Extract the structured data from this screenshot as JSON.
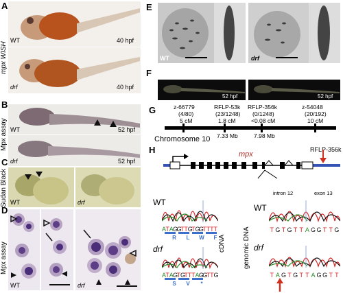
{
  "panels": {
    "A": {
      "letter": "A",
      "side": "mpx WISH",
      "wt": "WT",
      "drf": "drf",
      "stage1": "40 hpf",
      "stage2": "40 hpf"
    },
    "B": {
      "letter": "B",
      "side": "Mpx assay",
      "wt": "WT",
      "drf": "drf",
      "stage1": "52 hpf",
      "stage2": "52 hpf"
    },
    "C": {
      "letter": "C",
      "side": "Sudan Black",
      "wt": "WT",
      "drf": "drf"
    },
    "D": {
      "letter": "D",
      "side": "Mpx assay",
      "wt": "WT",
      "drf": "drf"
    },
    "E": {
      "letter": "E",
      "wt": "WT",
      "drf": "drf"
    },
    "F": {
      "letter": "F",
      "stage1": "52 hpf",
      "stage2": "52 hpf"
    },
    "G": {
      "letter": "G",
      "chromosome": "Chromosome 10",
      "markers": [
        {
          "name": "z-66779",
          "ratio": "(4/80)",
          "dist": "5 cM",
          "pos": ""
        },
        {
          "name": "RFLP-53k",
          "ratio": "(23/1248)",
          "dist": "1.8 cM",
          "pos": "7.33 Mb"
        },
        {
          "name": "RFLP-356k",
          "ratio": "(0/1248)",
          "dist": "<0.08 cM",
          "pos": "7.98 Mb"
        },
        {
          "name": "z-54048",
          "ratio": "(20/192)",
          "dist": "10 cM",
          "pos": ""
        }
      ]
    },
    "H": {
      "letter": "H",
      "gene": "mpx",
      "marker": "RFLP-356k",
      "cdna_label": "cDNA",
      "gdna_label": "genomic DNA",
      "wt": "WT",
      "drf": "drf",
      "intron": "intron 12",
      "exon": "exon 13",
      "wt_cdna_seq": [
        "A",
        "T",
        "A",
        "G",
        "G",
        "T",
        "T",
        "G",
        "T",
        "G",
        "G",
        "T",
        "T",
        "T",
        "T"
      ],
      "wt_cdna_aa": [
        "R",
        "L",
        "W",
        "F"
      ],
      "drf_cdna_seq": [
        "A",
        "T",
        "A",
        "G",
        "T",
        "G",
        "T",
        "T",
        "T",
        "A",
        "G",
        "G",
        "T",
        "T",
        "G"
      ],
      "drf_cdna_aa": [
        "S",
        "V",
        "*"
      ],
      "wt_gdna_seq": [
        "T",
        "G",
        "T",
        "G",
        "T",
        "T",
        "A",
        "G",
        "G",
        "T",
        "T",
        "G"
      ],
      "drf_gdna_seq": [
        "T",
        "A",
        "G",
        "T",
        "G",
        "T",
        "T",
        "A",
        "G",
        "G",
        "T",
        "T"
      ]
    }
  },
  "colors": {
    "base_A": "#2a8c2a",
    "base_T": "#d62020",
    "base_G": "#111111",
    "base_C": "#2040d0",
    "aa_bar": "#3b6fc9",
    "arrow_red": "#d03020",
    "chrom_blue": "#3553b5"
  }
}
